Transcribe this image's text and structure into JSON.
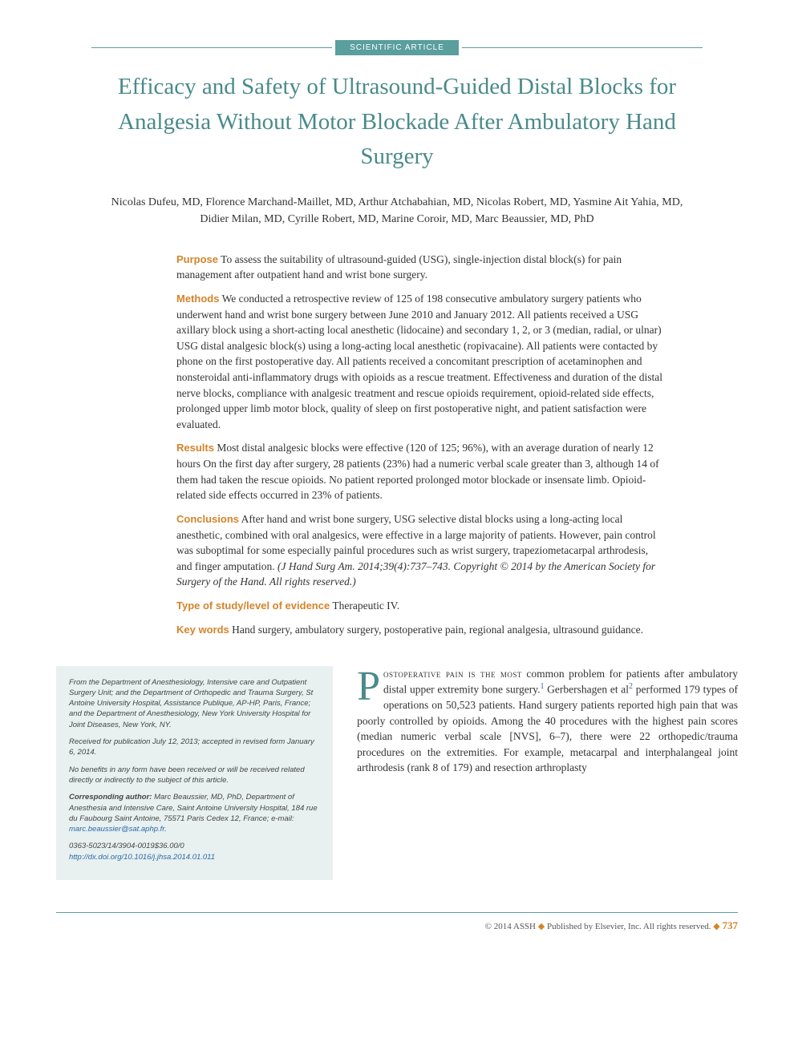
{
  "badge": "SCIENTIFIC ARTICLE",
  "title": "Efficacy and Safety of Ultrasound-Guided Distal Blocks for Analgesia Without Motor Blockade After Ambulatory Hand Surgery",
  "authors": "Nicolas Dufeu, MD, Florence Marchand-Maillet, MD, Arthur Atchabahian, MD, Nicolas Robert, MD, Yasmine Ait Yahia, MD, Didier Milan, MD, Cyrille Robert, MD, Marine Coroir, MD, Marc Beaussier, MD, PhD",
  "abstract": {
    "purpose_label": "Purpose",
    "purpose_text": " To assess the suitability of ultrasound-guided (USG), single-injection distal block(s) for pain management after outpatient hand and wrist bone surgery.",
    "methods_label": "Methods",
    "methods_text": " We conducted a retrospective review of 125 of 198 consecutive ambulatory surgery patients who underwent hand and wrist bone surgery between June 2010 and January 2012. All patients received a USG axillary block using a short-acting local anesthetic (lidocaine) and secondary 1, 2, or 3 (median, radial, or ulnar) USG distal analgesic block(s) using a long-acting local anesthetic (ropivacaine). All patients were contacted by phone on the first postoperative day. All patients received a concomitant prescription of acetaminophen and nonsteroidal anti-inflammatory drugs with opioids as a rescue treatment. Effectiveness and duration of the distal nerve blocks, compliance with analgesic treatment and rescue opioids requirement, opioid-related side effects, prolonged upper limb motor block, quality of sleep on first postoperative night, and patient satisfaction were evaluated.",
    "results_label": "Results",
    "results_text": " Most distal analgesic blocks were effective (120 of 125; 96%), with an average duration of nearly 12 hours On the first day after surgery, 28 patients (23%) had a numeric verbal scale greater than 3, although 14 of them had taken the rescue opioids. No patient reported prolonged motor blockade or insensate limb. Opioid-related side effects occurred in 23% of patients.",
    "conclusions_label": "Conclusions",
    "conclusions_text": " After hand and wrist bone surgery, USG selective distal blocks using a long-acting local anesthetic, combined with oral analgesics, were effective in a large majority of patients. However, pain control was suboptimal for some especially painful procedures such as wrist surgery, trapeziometacarpal arthrodesis, and finger amputation. ",
    "citation": "(J Hand Surg Am. 2014;39(4):737–743. Copyright © 2014 by the American Society for Surgery of the Hand. All rights reserved.)",
    "type_label": "Type of study/level of evidence",
    "type_text": " Therapeutic IV.",
    "keywords_label": "Key words",
    "keywords_text": " Hand surgery, ambulatory surgery, postoperative pain, regional analgesia, ultrasound guidance."
  },
  "affiliation": {
    "from": "From the Department of Anesthesiology, Intensive care and Outpatient Surgery Unit; and the Department of Orthopedic and Trauma Surgery, St Antoine University Hospital, Assistance Publique, AP-HP, Paris, France; and the Department of Anesthesiology, New York University Hospital for Joint Diseases, New York, NY.",
    "received": "Received for publication July 12, 2013; accepted in revised form January 6, 2014.",
    "benefits": "No benefits in any form have been received or will be received related directly or indirectly to the subject of this article.",
    "corresponding_label": "Corresponding author:",
    "corresponding_text": " Marc Beaussier, MD, PhD, Department of Anesthesia and Intensive Care, Saint Antoine University Hospital, 184 rue du Faubourg Saint Antoine, 75571 Paris Cedex 12, France; e-mail: ",
    "email": "marc.beaussier@sat.aphp.fr",
    "issn": "0363-5023/14/3904-0019$36.00/0",
    "doi": "http://dx.doi.org/10.1016/j.jhsa.2014.01.011"
  },
  "body": {
    "dropcap": "P",
    "smallcaps": "ostoperative pain is the most",
    "text_part1": " common problem for patients after ambulatory distal upper extremity bone surgery.",
    "ref1": "1",
    "text_part2": " Gerbershagen et al",
    "ref2": "2",
    "text_part3": " performed 179 types of operations on 50,523 patients. Hand surgery patients reported high pain that was poorly controlled by opioids. Among the 40 procedures with the highest pain scores (median numeric verbal scale [NVS], 6–7), there were 22 orthopedic/trauma procedures on the extremities. For example, metacarpal and interphalangeal joint arthrodesis (rank 8 of 179) and resection arthroplasty"
  },
  "footer": {
    "copyright": "© 2014 ASSH ",
    "publisher": " Published by Elsevier, Inc. All rights reserved. ",
    "pagenum": "737"
  },
  "colors": {
    "teal": "#5a9e9e",
    "title_teal": "#4a8a8a",
    "orange": "#d4842a",
    "link": "#2a6aa8",
    "affil_bg": "#e8f0f0"
  }
}
